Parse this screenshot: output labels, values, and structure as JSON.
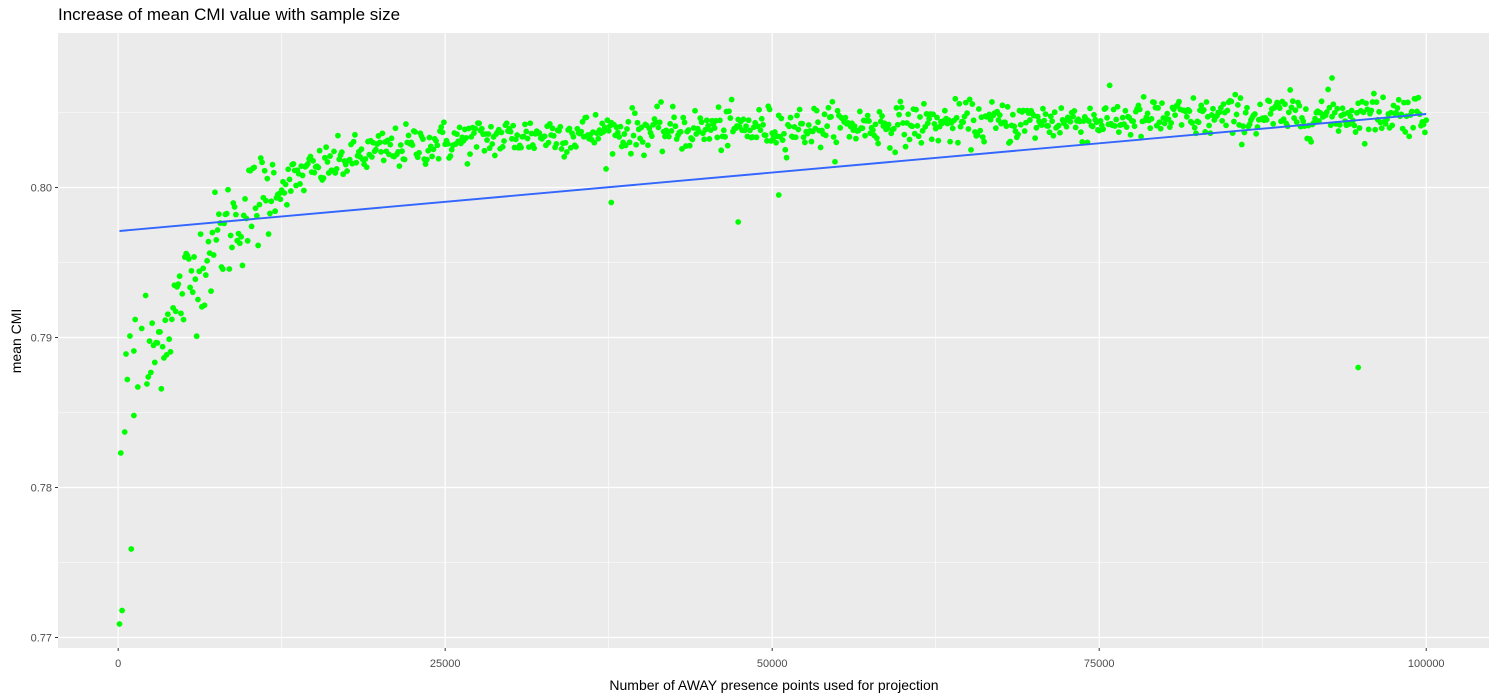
{
  "chart_data": {
    "type": "scatter",
    "title": "Increase of mean CMI value with sample size",
    "xlabel": "Number of AWAY presence points used for projection",
    "ylabel": "mean CMI",
    "xlim": [
      -4600,
      104800
    ],
    "ylim": [
      0.7693,
      0.8103
    ],
    "x_ticks": [
      0,
      25000,
      50000,
      75000,
      100000
    ],
    "x_tick_labels": [
      "0",
      "25000",
      "50000",
      "75000",
      "100000"
    ],
    "y_ticks": [
      0.77,
      0.78,
      0.79,
      0.8
    ],
    "y_tick_labels": [
      "0.77",
      "0.78",
      "0.79",
      "0.80"
    ],
    "grid": true,
    "legend": "none",
    "series": [
      {
        "kind": "points",
        "color": "#00ff00",
        "x_range": [
          100,
          100000
        ],
        "n_points": 1000,
        "notable_points": [
          {
            "x": 100,
            "y": 0.7709
          },
          {
            "x": 200,
            "y": 0.7823
          },
          {
            "x": 300,
            "y": 0.7718
          },
          {
            "x": 500,
            "y": 0.7837
          },
          {
            "x": 600,
            "y": 0.7889
          },
          {
            "x": 700,
            "y": 0.7872
          },
          {
            "x": 900,
            "y": 0.7901
          },
          {
            "x": 1000,
            "y": 0.7759
          },
          {
            "x": 1200,
            "y": 0.7891
          },
          {
            "x": 1300,
            "y": 0.7912
          },
          {
            "x": 1200,
            "y": 0.7848
          },
          {
            "x": 1500,
            "y": 0.7867
          },
          {
            "x": 1800,
            "y": 0.7906
          },
          {
            "x": 2200,
            "y": 0.7869
          },
          {
            "x": 2100,
            "y": 0.7928
          },
          {
            "x": 37700,
            "y": 0.799
          },
          {
            "x": 47400,
            "y": 0.7977
          },
          {
            "x": 50500,
            "y": 0.7995
          },
          {
            "x": 92800,
            "y": 0.8073
          },
          {
            "x": 94800,
            "y": 0.788
          }
        ]
      },
      {
        "kind": "linear_fit",
        "color": "#3366ff",
        "x": [
          100,
          100000
        ],
        "y": [
          0.7971,
          0.8049
        ]
      }
    ]
  }
}
